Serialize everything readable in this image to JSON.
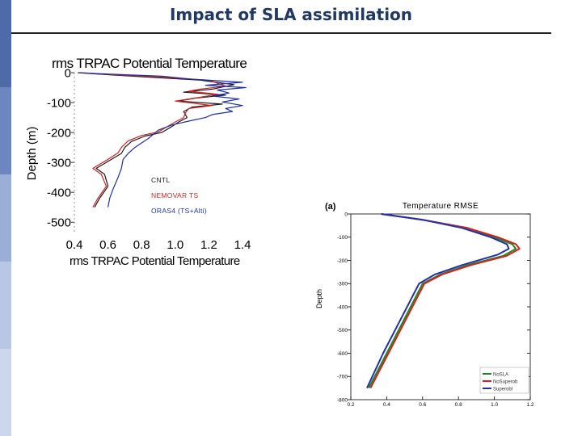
{
  "slide": {
    "title": "Impact of SLA assimilation",
    "sidebar_colors": [
      "#4f6aa8",
      "#6d86c0",
      "#9aaed6",
      "#b8c7e3",
      "#ccd7ec"
    ]
  },
  "chart_data": [
    {
      "type": "line",
      "title": "rms  TRPAC Potential Temperature",
      "xlabel": "rms  TRPAC Potential Temperature",
      "ylabel": "Depth (m)",
      "xlim": [
        0.4,
        1.4
      ],
      "ylim": [
        -540,
        0
      ],
      "xticks": [
        "0.4",
        "0.6",
        "0.8",
        "1.0",
        "1.2",
        "1.4"
      ],
      "yticks": [
        "0",
        "-100",
        "-200",
        "-300",
        "-400",
        "-500"
      ],
      "xtick_values": [
        0.4,
        0.6,
        0.8,
        1.0,
        1.2,
        1.4
      ],
      "ytick_values": [
        0,
        -100,
        -200,
        -300,
        -400,
        -500
      ],
      "legend_position": "lower-left",
      "series": [
        {
          "name": "CNTL",
          "color": "#1a1a1a",
          "points": [
            [
              0.42,
              0
            ],
            [
              0.55,
              -5
            ],
            [
              0.85,
              -15
            ],
            [
              1.15,
              -25
            ],
            [
              1.35,
              -40
            ],
            [
              1.22,
              -55
            ],
            [
              1.05,
              -65
            ],
            [
              1.3,
              -75
            ],
            [
              1.12,
              -85
            ],
            [
              1.02,
              -95
            ],
            [
              1.28,
              -105
            ],
            [
              1.1,
              -115
            ],
            [
              1.05,
              -130
            ],
            [
              1.07,
              -150
            ],
            [
              1.02,
              -165
            ],
            [
              0.98,
              -180
            ],
            [
              0.92,
              -200
            ],
            [
              0.82,
              -212
            ],
            [
              0.74,
              -230
            ],
            [
              0.7,
              -250
            ],
            [
              0.68,
              -270
            ],
            [
              0.62,
              -290
            ],
            [
              0.53,
              -320
            ],
            [
              0.58,
              -340
            ],
            [
              0.6,
              -380
            ],
            [
              0.55,
              -420
            ],
            [
              0.52,
              -450
            ]
          ]
        },
        {
          "name": "NEMOVAR TS",
          "color": "#d62020",
          "points": [
            [
              0.42,
              0
            ],
            [
              0.58,
              -5
            ],
            [
              0.92,
              -15
            ],
            [
              1.2,
              -25
            ],
            [
              1.3,
              -45
            ],
            [
              1.15,
              -55
            ],
            [
              1.08,
              -62
            ],
            [
              1.25,
              -72
            ],
            [
              1.15,
              -82
            ],
            [
              1.0,
              -95
            ],
            [
              1.22,
              -110
            ],
            [
              1.08,
              -120
            ],
            [
              1.06,
              -135
            ],
            [
              1.05,
              -150
            ],
            [
              1.0,
              -165
            ],
            [
              0.96,
              -178
            ],
            [
              0.9,
              -198
            ],
            [
              0.8,
              -210
            ],
            [
              0.72,
              -228
            ],
            [
              0.68,
              -250
            ],
            [
              0.66,
              -268
            ],
            [
              0.6,
              -290
            ],
            [
              0.51,
              -320
            ],
            [
              0.56,
              -340
            ],
            [
              0.59,
              -380
            ],
            [
              0.54,
              -420
            ],
            [
              0.51,
              -450
            ]
          ]
        },
        {
          "name": "ORAS4 (TS+Alti)",
          "color": "#1f2fb0",
          "points": [
            [
              0.43,
              0
            ],
            [
              0.62,
              -5
            ],
            [
              0.92,
              -12
            ],
            [
              1.1,
              -22
            ],
            [
              1.4,
              -32
            ],
            [
              1.18,
              -42
            ],
            [
              1.42,
              -50
            ],
            [
              1.25,
              -58
            ],
            [
              1.32,
              -68
            ],
            [
              1.22,
              -78
            ],
            [
              1.38,
              -88
            ],
            [
              1.28,
              -98
            ],
            [
              1.4,
              -110
            ],
            [
              1.3,
              -120
            ],
            [
              1.34,
              -130
            ],
            [
              1.22,
              -140
            ],
            [
              1.18,
              -150
            ],
            [
              1.08,
              -162
            ],
            [
              0.98,
              -175
            ],
            [
              0.9,
              -192
            ],
            [
              0.84,
              -220
            ],
            [
              0.76,
              -250
            ],
            [
              0.72,
              -270
            ],
            [
              0.69,
              -290
            ],
            [
              0.68,
              -320
            ],
            [
              0.66,
              -350
            ],
            [
              0.63,
              -390
            ],
            [
              0.61,
              -420
            ],
            [
              0.6,
              -450
            ]
          ]
        }
      ]
    },
    {
      "type": "line",
      "panel_label": "(a)",
      "title": "Temperature RMSE",
      "xlabel": "",
      "ylabel": "Depth",
      "xlim": [
        0.2,
        1.2
      ],
      "ylim": [
        -800,
        0
      ],
      "xticks": [
        "0.2",
        "0.4",
        "0.6",
        "0.8",
        "1.0",
        "1.2"
      ],
      "yticks": [
        "0",
        "-100",
        "-200",
        "-300",
        "-400",
        "-500",
        "-600",
        "-700",
        "-800"
      ],
      "xtick_values": [
        0.2,
        0.4,
        0.6,
        0.8,
        1.0,
        1.2
      ],
      "ytick_values": [
        0,
        -100,
        -200,
        -300,
        -400,
        -500,
        -600,
        -700,
        -800
      ],
      "legend_position": "lower-right",
      "series": [
        {
          "name": "NoSLA",
          "color": "#1a8a1a",
          "points": [
            [
              0.37,
              0
            ],
            [
              0.6,
              -25
            ],
            [
              0.85,
              -60
            ],
            [
              1.0,
              -100
            ],
            [
              1.1,
              -130
            ],
            [
              1.12,
              -150
            ],
            [
              1.05,
              -180
            ],
            [
              0.85,
              -220
            ],
            [
              0.7,
              -260
            ],
            [
              0.6,
              -300
            ],
            [
              0.5,
              -450
            ],
            [
              0.4,
              -600
            ],
            [
              0.3,
              -750
            ]
          ]
        },
        {
          "name": "NoSuperob",
          "color": "#d62020",
          "points": [
            [
              0.37,
              0
            ],
            [
              0.6,
              -25
            ],
            [
              0.85,
              -60
            ],
            [
              1.02,
              -100
            ],
            [
              1.12,
              -130
            ],
            [
              1.14,
              -150
            ],
            [
              1.07,
              -180
            ],
            [
              0.87,
              -220
            ],
            [
              0.71,
              -260
            ],
            [
              0.61,
              -300
            ],
            [
              0.51,
              -450
            ],
            [
              0.41,
              -600
            ],
            [
              0.31,
              -750
            ]
          ]
        },
        {
          "name": "Superobl",
          "color": "#1f2fb0",
          "points": [
            [
              0.37,
              0
            ],
            [
              0.6,
              -25
            ],
            [
              0.82,
              -60
            ],
            [
              0.98,
              -100
            ],
            [
              1.07,
              -130
            ],
            [
              1.08,
              -150
            ],
            [
              1.02,
              -175
            ],
            [
              0.82,
              -220
            ],
            [
              0.67,
              -260
            ],
            [
              0.58,
              -300
            ],
            [
              0.48,
              -450
            ],
            [
              0.38,
              -600
            ],
            [
              0.29,
              -750
            ]
          ]
        }
      ]
    }
  ]
}
